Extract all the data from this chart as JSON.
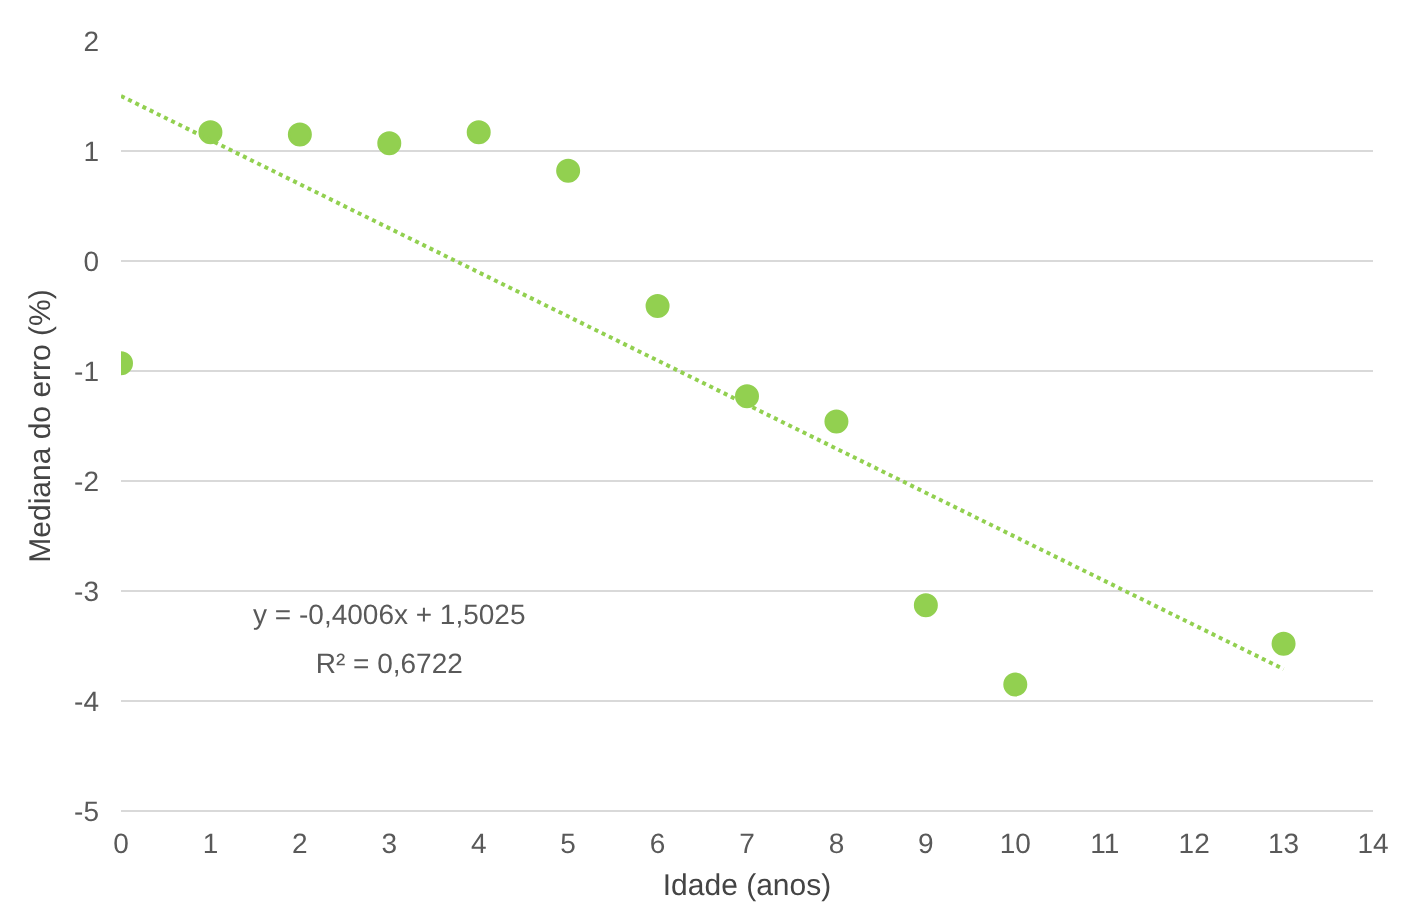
{
  "chart_data": {
    "type": "scatter",
    "xlabel": "Idade (anos)",
    "ylabel": "Mediana do erro (%)",
    "series": [
      {
        "color": "#92d050",
        "marker": "circle",
        "x": [
          0,
          1,
          2,
          3,
          4,
          5,
          6,
          7,
          8,
          9,
          10,
          13
        ],
        "values": [
          -0.93,
          1.17,
          1.15,
          1.07,
          1.17,
          0.82,
          -0.41,
          -1.23,
          -1.46,
          -3.13,
          -3.85,
          -3.48
        ]
      },
      {
        "type": "line",
        "color": "#92d050",
        "line_style": "dotted",
        "x": [
          0,
          13
        ],
        "values": [
          1.5,
          -3.71
        ]
      }
    ],
    "xlim": [
      0,
      14
    ],
    "xticks": [
      0,
      1,
      2,
      3,
      4,
      5,
      6,
      7,
      8,
      9,
      10,
      11,
      12,
      13,
      14
    ],
    "ylim": [
      -5,
      2
    ],
    "yticks": [
      -5,
      -4,
      -3,
      -2,
      -1,
      0,
      1,
      2
    ],
    "grid": "y",
    "annotations": [
      "y = -0,4006x + 1,5025",
      "R² = 0,6722"
    ]
  }
}
